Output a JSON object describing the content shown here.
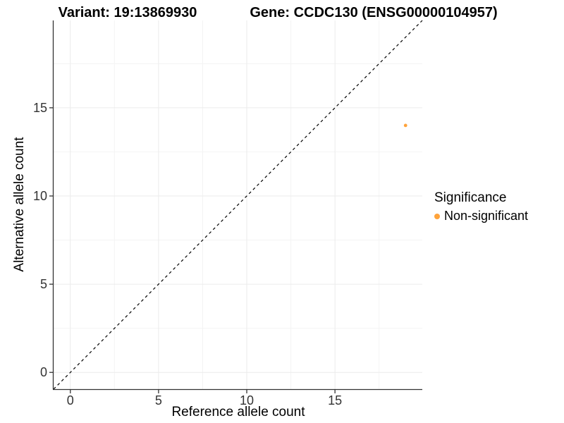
{
  "chart_data": {
    "type": "scatter",
    "title_variant": "Variant: 19:13869930",
    "title_gene": "Gene: CCDC130 (ENSG00000104957)",
    "xlabel": "Reference allele count",
    "ylabel": "Alternative allele count",
    "xlim": [
      -0.95,
      19.95
    ],
    "ylim": [
      -0.95,
      19.95
    ],
    "x_ticks": [
      0,
      5,
      10,
      15
    ],
    "y_ticks": [
      0,
      5,
      10,
      15
    ],
    "major_gridlines": [
      0,
      5,
      10,
      15,
      20
    ],
    "minor_gridlines": [
      2.5,
      7.5,
      12.5,
      17.5
    ],
    "grid": true,
    "points": [
      {
        "x": 19,
        "y": 14,
        "series": "Non-significant"
      }
    ],
    "abline": {
      "slope": 1,
      "intercept": 0,
      "style": "dashed"
    },
    "legend": {
      "title": "Significance",
      "position": "right",
      "items": [
        {
          "label": "Non-significant",
          "color": "#FFA33B"
        }
      ]
    },
    "colors": {
      "point": "#FFA33B",
      "abline": "#000000",
      "grid_major": "#ebebeb",
      "grid_minor": "#f4f4f4",
      "axis_line": "#333333",
      "tick_label": "#333333"
    }
  }
}
